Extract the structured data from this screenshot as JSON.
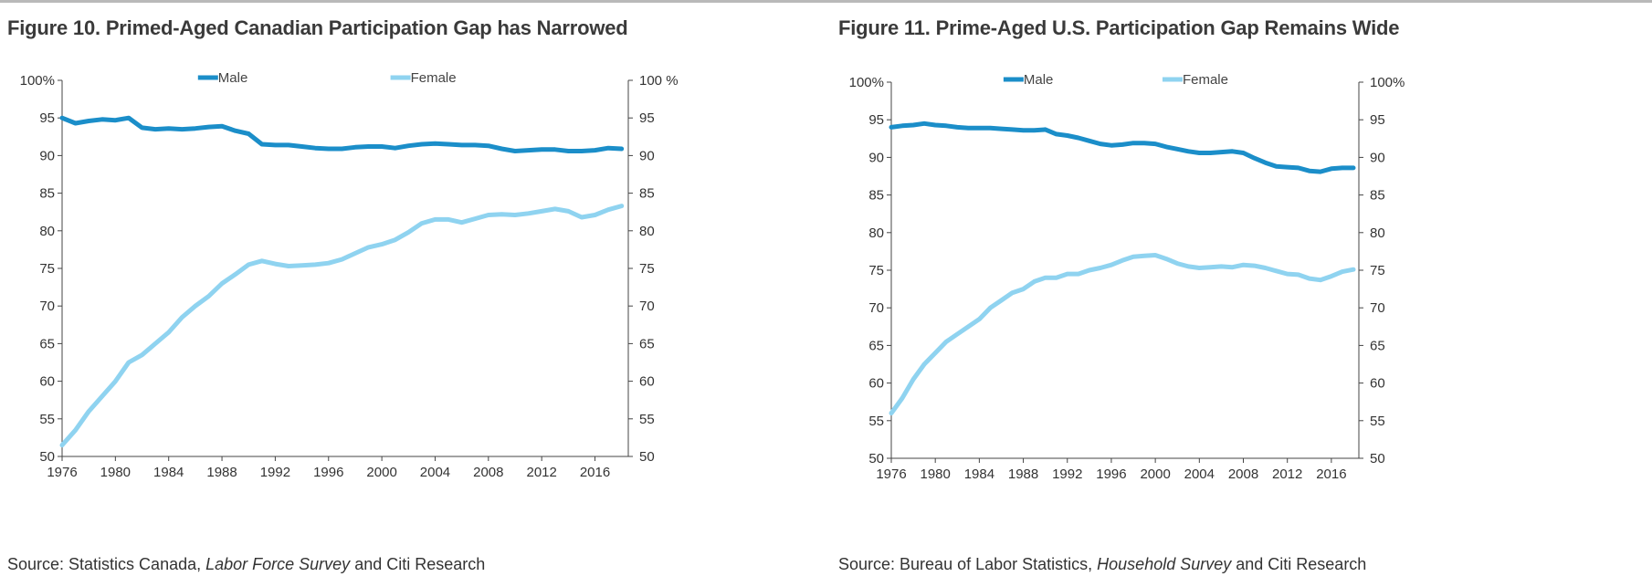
{
  "colors": {
    "male": "#1b8ec9",
    "female": "#8fd3f0",
    "axis": "#444444"
  },
  "legend": {
    "male_label": "Male",
    "female_label": "Female"
  },
  "chart_data": [
    {
      "type": "line",
      "title": "Figure 10. Primed-Aged Canadian Participation Gap has Narrowed",
      "source_prefix": "Source: Statistics Canada, ",
      "source_italic": "Labor Force Survey",
      "source_suffix": " and Citi Research",
      "xlim": [
        1976,
        2018.5
      ],
      "ylim": [
        50,
        100
      ],
      "x_ticks": [
        1976,
        1980,
        1984,
        1988,
        1992,
        1996,
        2000,
        2004,
        2008,
        2012,
        2016
      ],
      "y_ticks_left": [
        "50",
        "55",
        "60",
        "65",
        "70",
        "75",
        "80",
        "85",
        "90",
        "95",
        "100%"
      ],
      "y_ticks_right": [
        "50",
        "55",
        "60",
        "65",
        "70",
        "75",
        "80",
        "85",
        "90",
        "95",
        "100 %"
      ],
      "series": [
        {
          "name": "Male",
          "x": [
            1976,
            1977,
            1978,
            1979,
            1980,
            1981,
            1982,
            1983,
            1984,
            1985,
            1986,
            1987,
            1988,
            1989,
            1990,
            1991,
            1992,
            1993,
            1994,
            1995,
            1996,
            1997,
            1998,
            1999,
            2000,
            2001,
            2002,
            2003,
            2004,
            2005,
            2006,
            2007,
            2008,
            2009,
            2010,
            2011,
            2012,
            2013,
            2014,
            2015,
            2016,
            2017,
            2018
          ],
          "values": [
            95,
            94.3,
            94.6,
            94.8,
            94.7,
            95,
            93.7,
            93.5,
            93.6,
            93.5,
            93.6,
            93.8,
            93.9,
            93.3,
            92.9,
            91.5,
            91.4,
            91.4,
            91.2,
            91.0,
            90.9,
            90.9,
            91.1,
            91.2,
            91.2,
            91.0,
            91.3,
            91.5,
            91.6,
            91.5,
            91.4,
            91.4,
            91.3,
            90.9,
            90.6,
            90.7,
            90.8,
            90.8,
            90.6,
            90.6,
            90.7,
            91.0,
            90.9
          ]
        },
        {
          "name": "Female",
          "x": [
            1976,
            1977,
            1978,
            1979,
            1980,
            1981,
            1982,
            1983,
            1984,
            1985,
            1986,
            1987,
            1988,
            1989,
            1990,
            1991,
            1992,
            1993,
            1994,
            1995,
            1996,
            1997,
            1998,
            1999,
            2000,
            2001,
            2002,
            2003,
            2004,
            2005,
            2006,
            2007,
            2008,
            2009,
            2010,
            2011,
            2012,
            2013,
            2014,
            2015,
            2016,
            2017,
            2018
          ],
          "values": [
            51.5,
            53.5,
            56,
            58,
            60,
            62.5,
            63.5,
            65,
            66.5,
            68.5,
            70,
            71.3,
            73,
            74.2,
            75.5,
            76,
            75.6,
            75.3,
            75.4,
            75.5,
            75.7,
            76.2,
            77,
            77.8,
            78.2,
            78.8,
            79.8,
            81,
            81.5,
            81.5,
            81.1,
            81.6,
            82.1,
            82.2,
            82.1,
            82.3,
            82.6,
            82.9,
            82.6,
            81.8,
            82.1,
            82.8,
            83.3
          ]
        }
      ]
    },
    {
      "type": "line",
      "title": "Figure 11. Prime-Aged U.S. Participation Gap Remains Wide",
      "source_prefix": "Source: Bureau of Labor Statistics, ",
      "source_italic": "Household Survey",
      "source_suffix": " and Citi Research",
      "xlim": [
        1976,
        2018.5
      ],
      "ylim": [
        50,
        100
      ],
      "x_ticks": [
        1976,
        1980,
        1984,
        1988,
        1992,
        1996,
        2000,
        2004,
        2008,
        2012,
        2016
      ],
      "y_ticks_left": [
        "50",
        "55",
        "60",
        "65",
        "70",
        "75",
        "80",
        "85",
        "90",
        "95",
        "100%"
      ],
      "y_ticks_right": [
        "50",
        "55",
        "60",
        "65",
        "70",
        "75",
        "80",
        "85",
        "90",
        "95",
        "100%"
      ],
      "series": [
        {
          "name": "Male",
          "x": [
            1976,
            1977,
            1978,
            1979,
            1980,
            1981,
            1982,
            1983,
            1984,
            1985,
            1986,
            1987,
            1988,
            1989,
            1990,
            1991,
            1992,
            1993,
            1994,
            1995,
            1996,
            1997,
            1998,
            1999,
            2000,
            2001,
            2002,
            2003,
            2004,
            2005,
            2006,
            2007,
            2008,
            2009,
            2010,
            2011,
            2012,
            2013,
            2014,
            2015,
            2016,
            2017,
            2018
          ],
          "values": [
            94,
            94.2,
            94.3,
            94.5,
            94.3,
            94.2,
            94.0,
            93.9,
            93.9,
            93.9,
            93.8,
            93.7,
            93.6,
            93.6,
            93.7,
            93.1,
            92.9,
            92.6,
            92.2,
            91.8,
            91.6,
            91.7,
            91.9,
            91.9,
            91.8,
            91.4,
            91.1,
            90.8,
            90.6,
            90.6,
            90.7,
            90.8,
            90.6,
            89.9,
            89.3,
            88.8,
            88.7,
            88.6,
            88.2,
            88.1,
            88.5,
            88.6,
            88.6
          ]
        },
        {
          "name": "Female",
          "x": [
            1976,
            1977,
            1978,
            1979,
            1980,
            1981,
            1982,
            1983,
            1984,
            1985,
            1986,
            1987,
            1988,
            1989,
            1990,
            1991,
            1992,
            1993,
            1994,
            1995,
            1996,
            1997,
            1998,
            1999,
            2000,
            2001,
            2002,
            2003,
            2004,
            2005,
            2006,
            2007,
            2008,
            2009,
            2010,
            2011,
            2012,
            2013,
            2014,
            2015,
            2016,
            2017,
            2018
          ],
          "values": [
            56,
            58,
            60.5,
            62.5,
            64,
            65.5,
            66.5,
            67.5,
            68.5,
            70,
            71,
            72,
            72.5,
            73.5,
            74,
            74,
            74.5,
            74.5,
            75,
            75.3,
            75.7,
            76.3,
            76.8,
            76.9,
            77,
            76.5,
            75.9,
            75.5,
            75.3,
            75.4,
            75.5,
            75.4,
            75.7,
            75.6,
            75.3,
            74.9,
            74.5,
            74.4,
            73.9,
            73.7,
            74.2,
            74.8,
            75.1
          ]
        }
      ]
    }
  ]
}
